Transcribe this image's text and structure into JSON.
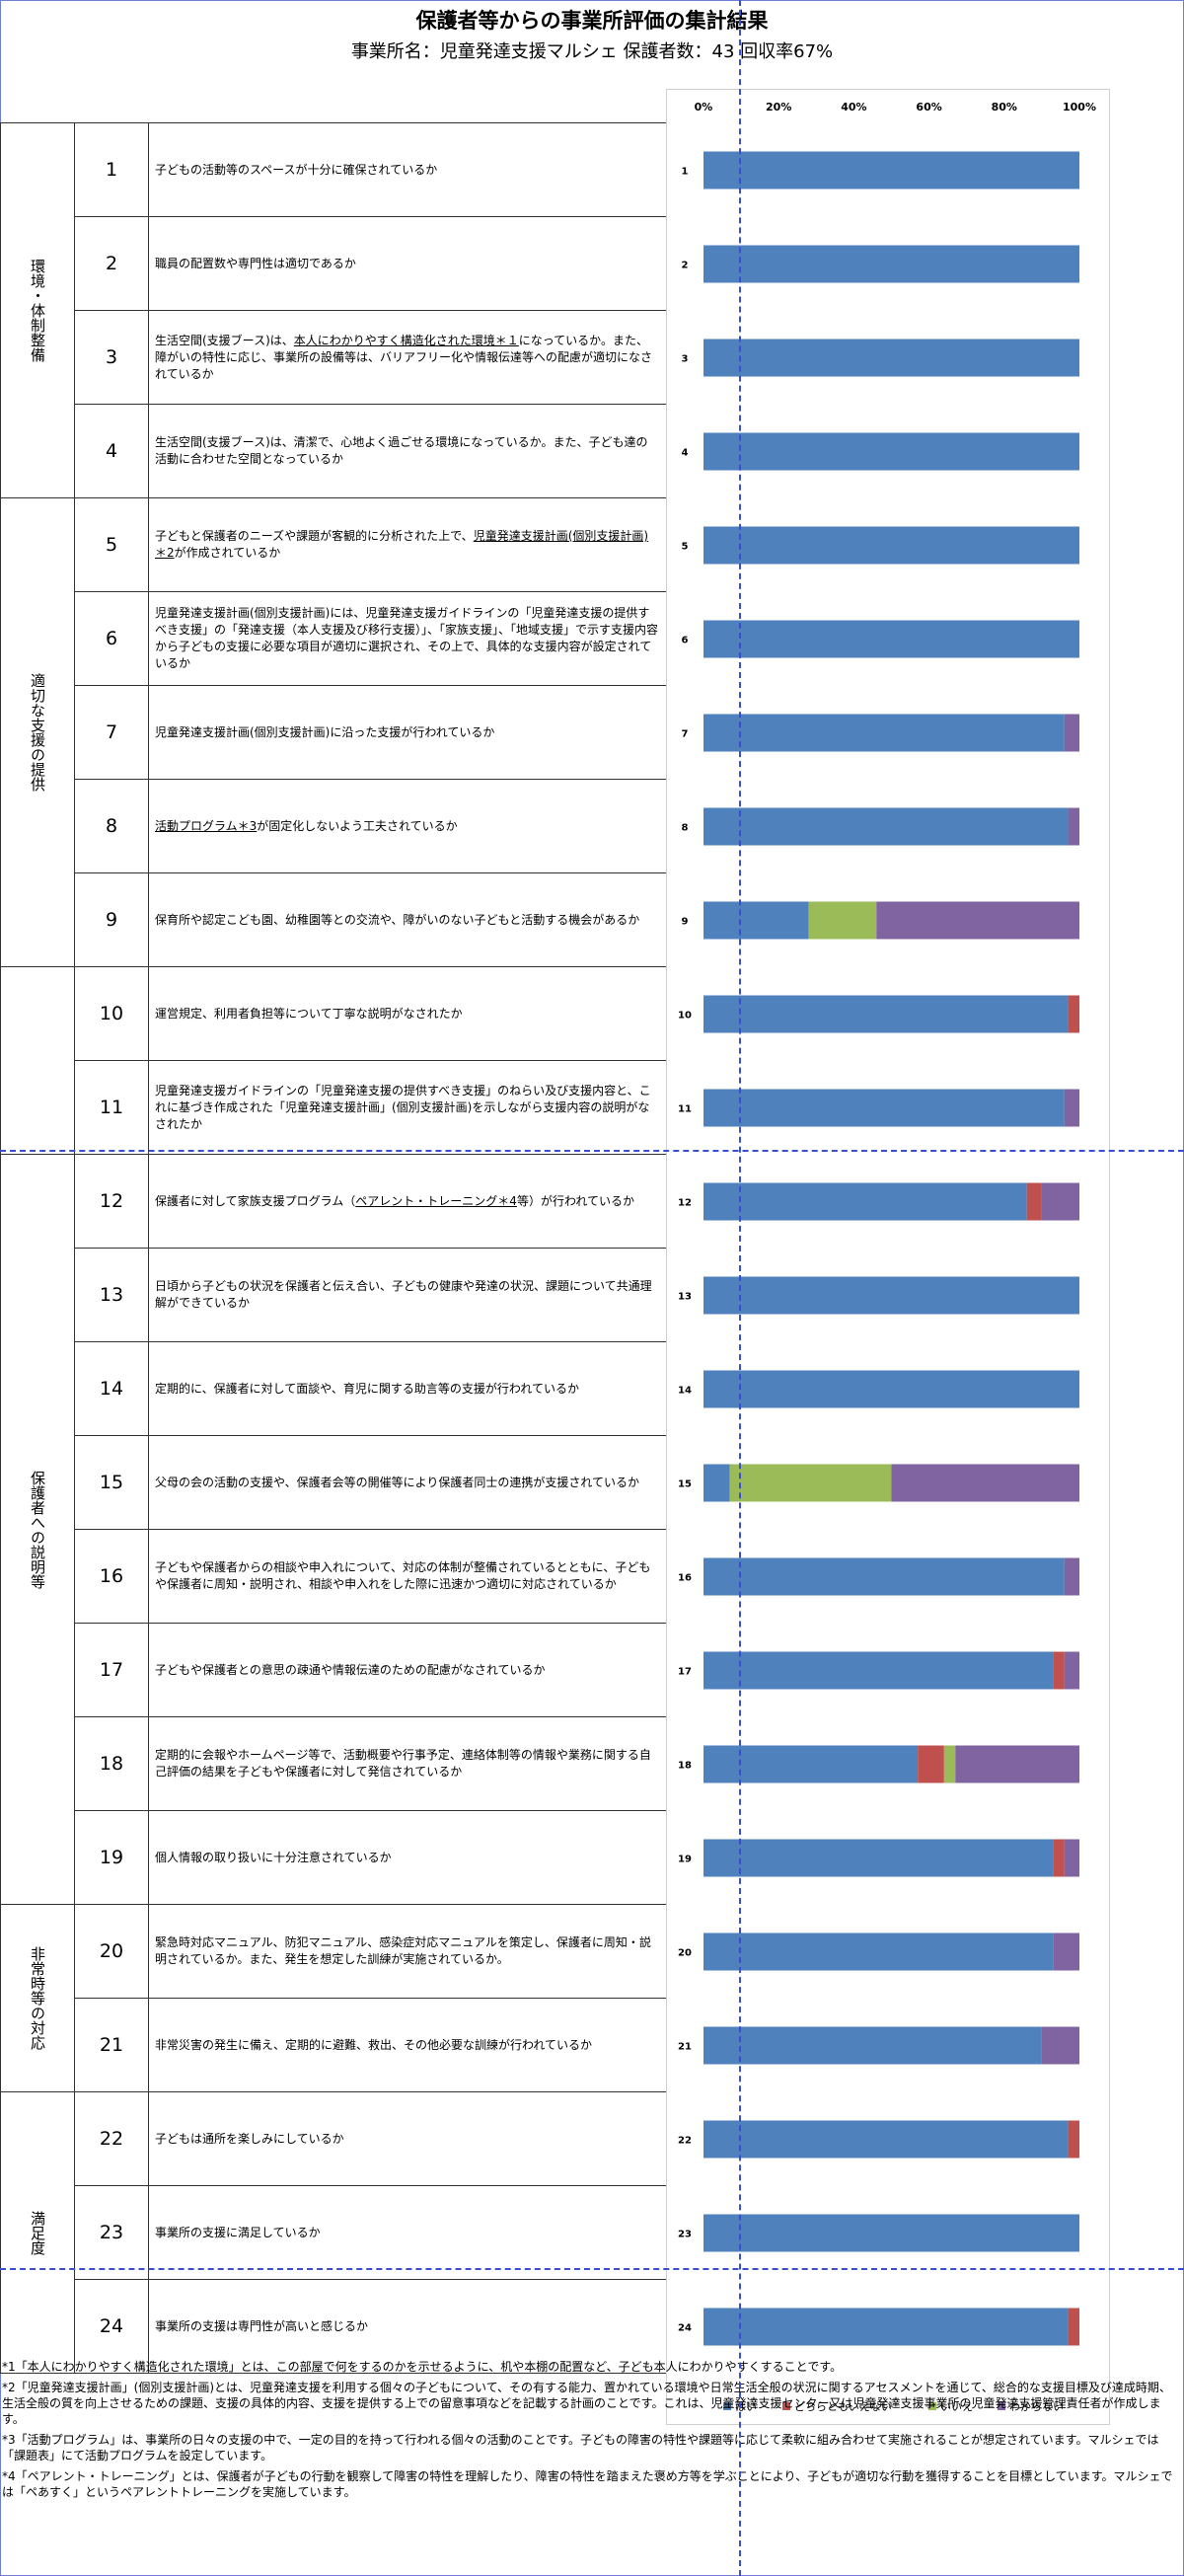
{
  "header": {
    "title": "保護者等からの事業所評価の集計結果",
    "subtitle": "事業所名：児童発達支援マルシェ  保護者数：43  回収率67%"
  },
  "categories": [
    {
      "name": "環境・体制整備",
      "rows": 4
    },
    {
      "name": "適切な支援の提供",
      "rows": 5
    },
    {
      "name": "",
      "rows": 2
    },
    {
      "name": "保護者への説明等",
      "rows": 8
    },
    {
      "name": "非常時等の対応",
      "rows": 2
    },
    {
      "name": "満足度",
      "rows": 3
    }
  ],
  "questions": [
    {
      "num": "1",
      "parts": [
        {
          "text": "子どもの活動等のスペースが十分に確保されているか",
          "u": false
        }
      ]
    },
    {
      "num": "2",
      "parts": [
        {
          "text": "職員の配置数や専門性は適切であるか",
          "u": false
        }
      ]
    },
    {
      "num": "3",
      "parts": [
        {
          "text": "生活空間(支援ブース)は、",
          "u": false
        },
        {
          "text": "本人にわかりやすく構造化された環境＊１",
          "u": true
        },
        {
          "text": "になっているか。また、障がいの特性に応じ、事業所の設備等は、バリアフリー化や情報伝達等への配慮が適切になされているか",
          "u": false
        }
      ]
    },
    {
      "num": "4",
      "parts": [
        {
          "text": "生活空間(支援ブース)は、清潔で、心地よく過ごせる環境になっているか。また、子ども達の活動に合わせた空間となっているか",
          "u": false
        }
      ]
    },
    {
      "num": "5",
      "parts": [
        {
          "text": "子どもと保護者のニーズや課題が客観的に分析された上で、",
          "u": false
        },
        {
          "text": "児童発達支援計画(個別支援計画)＊2",
          "u": true
        },
        {
          "text": "が作成されているか",
          "u": false
        }
      ]
    },
    {
      "num": "6",
      "parts": [
        {
          "text": "児童発達支援計画(個別支援計画)には、児童発達支援ガイドラインの「児童発達支援の提供すべき支援」の「発達支援（本人支援及び移行支援）」、「家族支援」、「地域支援」で示す支援内容から子どもの支援に必要な項目が適切に選択され、その上で、具体的な支援内容が設定されているか",
          "u": false
        }
      ]
    },
    {
      "num": "7",
      "parts": [
        {
          "text": "児童発達支援計画(個別支援計画)に沿った支援が行われているか",
          "u": false
        }
      ]
    },
    {
      "num": "8",
      "parts": [
        {
          "text": "活動プログラム＊3",
          "u": true
        },
        {
          "text": "が固定化しないよう工夫されているか",
          "u": false
        }
      ]
    },
    {
      "num": "9",
      "parts": [
        {
          "text": "保育所や認定こども園、幼稚園等との交流や、障がいのない子どもと活動する機会があるか",
          "u": false
        }
      ]
    },
    {
      "num": "10",
      "parts": [
        {
          "text": "運営規定、利用者負担等について丁寧な説明がなされたか",
          "u": false
        }
      ]
    },
    {
      "num": "11",
      "parts": [
        {
          "text": "児童発達支援ガイドラインの「児童発達支援の提供すべき支援」のねらい及び支援内容と、これに基づき作成された「児童発達支援計画」(個別支援計画)を示しながら支援内容の説明がなされたか",
          "u": false
        }
      ]
    },
    {
      "num": "12",
      "parts": [
        {
          "text": "保護者に対して家族支援プログラム（",
          "u": false
        },
        {
          "text": "ペアレント・トレーニング＊4",
          "u": true
        },
        {
          "text": "等）が行われているか",
          "u": false
        }
      ]
    },
    {
      "num": "13",
      "parts": [
        {
          "text": "日頃から子どもの状況を保護者と伝え合い、子どもの健康や発達の状況、課題について共通理解ができているか",
          "u": false
        }
      ]
    },
    {
      "num": "14",
      "parts": [
        {
          "text": "定期的に、保護者に対して面談や、育児に関する助言等の支援が行われているか",
          "u": false
        }
      ]
    },
    {
      "num": "15",
      "parts": [
        {
          "text": "父母の会の活動の支援や、保護者会等の開催等により保護者同士の連携が支援されているか",
          "u": false
        }
      ]
    },
    {
      "num": "16",
      "parts": [
        {
          "text": "子どもや保護者からの相談や申入れについて、対応の体制が整備されているとともに、子どもや保護者に周知・説明され、相談や申入れをした際に迅速かつ適切に対応されているか",
          "u": false
        }
      ]
    },
    {
      "num": "17",
      "parts": [
        {
          "text": "子どもや保護者との意思の疎通や情報伝達のための配慮がなされているか",
          "u": false
        }
      ]
    },
    {
      "num": "18",
      "parts": [
        {
          "text": "定期的に会報やホームページ等で、活動概要や行事予定、連絡体制等の情報や業務に関する自己評価の結果を子どもや保護者に対して発信されているか",
          "u": false
        }
      ]
    },
    {
      "num": "19",
      "parts": [
        {
          "text": "個人情報の取り扱いに十分注意されているか",
          "u": false
        }
      ]
    },
    {
      "num": "20",
      "parts": [
        {
          "text": "緊急時対応マニュアル、防犯マニュアル、感染症対応マニュアルを策定し、保護者に周知・説明されているか。また、発生を想定した訓練が実施されているか。",
          "u": false
        }
      ]
    },
    {
      "num": "21",
      "parts": [
        {
          "text": "非常災害の発生に備え、定期的に避難、救出、その他必要な訓練が行われているか",
          "u": false
        }
      ]
    },
    {
      "num": "22",
      "parts": [
        {
          "text": "子どもは通所を楽しみにしているか",
          "u": false
        }
      ]
    },
    {
      "num": "23",
      "parts": [
        {
          "text": "事業所の支援に満足しているか",
          "u": false
        }
      ]
    },
    {
      "num": "24",
      "parts": [
        {
          "text": "事業所の支援は専門性が高いと感じるか",
          "u": false
        }
      ]
    }
  ],
  "chart_data": {
    "type": "bar",
    "orientation": "horizontal",
    "stacked": true,
    "percent_stacked": true,
    "categories": [
      "1",
      "2",
      "3",
      "4",
      "5",
      "6",
      "7",
      "8",
      "9",
      "10",
      "11",
      "12",
      "13",
      "14",
      "15",
      "16",
      "17",
      "18",
      "19",
      "20",
      "21",
      "22",
      "23",
      "24"
    ],
    "series": [
      {
        "name": "はい",
        "color": "#4f81bd",
        "values": [
          100,
          100,
          100,
          100,
          100,
          100,
          96,
          97,
          28,
          97,
          96,
          86,
          100,
          100,
          7,
          96,
          93,
          57,
          93,
          93,
          90,
          97,
          100,
          97
        ]
      },
      {
        "name": "どちらともいえない",
        "color": "#c0504d",
        "values": [
          0,
          0,
          0,
          0,
          0,
          0,
          0,
          0,
          0,
          3,
          0,
          4,
          0,
          0,
          0,
          0,
          3,
          7,
          3,
          0,
          0,
          3,
          0,
          3
        ]
      },
      {
        "name": "いいえ",
        "color": "#9bbb59",
        "values": [
          0,
          0,
          0,
          0,
          0,
          0,
          0,
          0,
          18,
          0,
          0,
          0,
          0,
          0,
          43,
          0,
          0,
          3,
          0,
          0,
          0,
          0,
          0,
          0
        ]
      },
      {
        "name": "わからない",
        "color": "#8064a2",
        "values": [
          0,
          0,
          0,
          0,
          0,
          0,
          4,
          3,
          54,
          0,
          4,
          10,
          0,
          0,
          50,
          4,
          4,
          33,
          4,
          7,
          10,
          0,
          0,
          0
        ]
      }
    ],
    "xlim": [
      0,
      100
    ],
    "xticks": [
      "0%",
      "20%",
      "40%",
      "60%",
      "80%",
      "100%"
    ],
    "legend_position": "bottom",
    "grid": false
  },
  "footnotes": [
    "*1「本人にわかりやすく構造化された環境」とは、この部屋で何をするのかを示せるように、机や本棚の配置など、子ども本人にわかりやすくすることです。",
    "*2「児童発達支援計画」(個別支援計画)とは、児童発達支援を利用する個々の子どもについて、その有する能力、置かれている環境や日常生活全般の状況に関するアセスメントを通じて、総合的な支援目標及び達成時期、生活全般の質を向上させるための課題、支援の具体的内容、支援を提供する上での留意事項などを記載する計画のことです。これは、児童発達支援センター又は児童発達支援事業所の児童発達支援管理責任者が作成します。",
    "*3「活動プログラム」は、事業所の日々の支援の中で、一定の目的を持って行われる個々の活動のことです。子どもの障害の特性や課題等に応じて柔軟に組み合わせて実施されることが想定されています。マルシェでは「課題表」にて活動プログラムを設定しています。",
    "*4「ペアレント・トレーニング」とは、保護者が子どもの行動を観察して障害の特性を理解したり、障害の特性を踏まえた褒め方等を学ぶことにより、子どもが適切な行動を獲得することを目標としています。マルシェでは「ペあすく」というペアレントトレーニングを実施しています。"
  ]
}
